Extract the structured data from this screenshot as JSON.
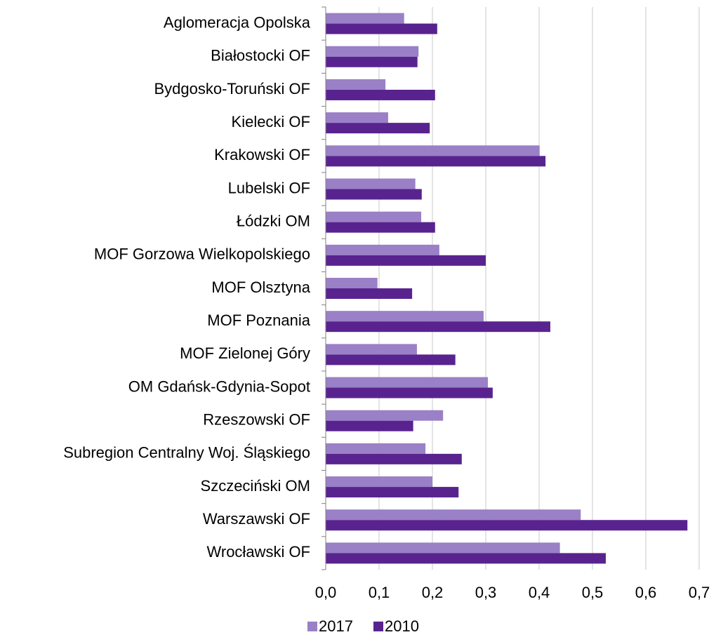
{
  "chart_data": {
    "type": "bar",
    "orientation": "horizontal",
    "categories": [
      "Aglomeracja Opolska",
      "Białostocki OF",
      "Bydgosko-Toruński OF",
      "Kielecki OF",
      "Krakowski OF",
      "Lubelski OF",
      "Łódzki OM",
      "MOF Gorzowa Wielkopolskiego",
      "MOF Olsztyna",
      "MOF Poznania",
      "MOF Zielonej Góry",
      "OM Gdańsk-Gdynia-Sopot",
      "Rzeszowski OF",
      "Subregion Centralny Woj. Śląskiego",
      "Szczeciński OM",
      "Warszawski OF",
      "Wrocławski OF"
    ],
    "series": [
      {
        "name": "2017",
        "color": "#9a80c6",
        "values": [
          0.147,
          0.174,
          0.112,
          0.117,
          0.401,
          0.168,
          0.179,
          0.213,
          0.097,
          0.296,
          0.171,
          0.304,
          0.22,
          0.187,
          0.2,
          0.478,
          0.439
        ]
      },
      {
        "name": "2010",
        "color": "#59238f",
        "values": [
          0.209,
          0.172,
          0.205,
          0.195,
          0.412,
          0.18,
          0.205,
          0.3,
          0.162,
          0.421,
          0.243,
          0.313,
          0.164,
          0.255,
          0.249,
          0.678,
          0.525
        ]
      }
    ],
    "xlim": [
      0,
      0.7
    ],
    "xticks": [
      {
        "value": 0,
        "label": "0,0"
      },
      {
        "value": 0.1,
        "label": "0,1"
      },
      {
        "value": 0.2,
        "label": "0,2"
      },
      {
        "value": 0.3,
        "label": "0,3"
      },
      {
        "value": 0.4,
        "label": "0,4"
      },
      {
        "value": 0.5,
        "label": "0,5"
      },
      {
        "value": 0.6,
        "label": "0,6"
      },
      {
        "value": 0.7,
        "label": "0,7"
      }
    ],
    "grid": true,
    "legend": "bottom"
  }
}
